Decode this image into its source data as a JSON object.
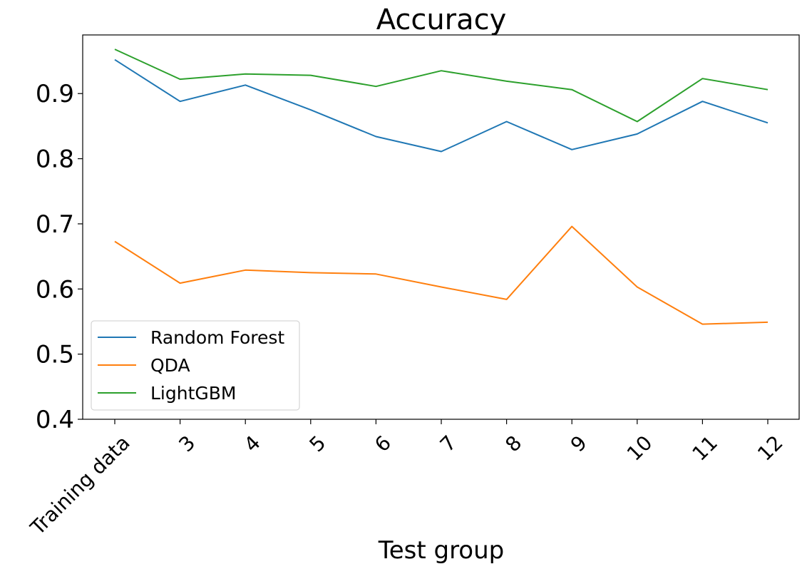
{
  "chart_data": {
    "type": "line",
    "title": "Accuracy",
    "xlabel": "Test group",
    "ylabel": "",
    "categories": [
      "Training data",
      "3",
      "4",
      "5",
      "6",
      "7",
      "8",
      "9",
      "10",
      "11",
      "12"
    ],
    "ylim": [
      0.4,
      0.99
    ],
    "yticks": [
      0.4,
      0.5,
      0.6,
      0.7,
      0.8,
      0.9
    ],
    "ytick_labels": [
      "0.4",
      "0.5",
      "0.6",
      "0.7",
      "0.8",
      "0.9"
    ],
    "grid": false,
    "legend_position": "lower-left",
    "series": [
      {
        "name": "Random Forest",
        "color": "#1f77b4",
        "values": [
          0.952,
          0.888,
          0.913,
          0.875,
          0.834,
          0.811,
          0.857,
          0.814,
          0.838,
          0.888,
          0.855
        ]
      },
      {
        "name": "QDA",
        "color": "#ff7f0e",
        "values": [
          0.673,
          0.609,
          0.629,
          0.625,
          0.623,
          0.603,
          0.584,
          0.696,
          0.603,
          0.546,
          0.549
        ]
      },
      {
        "name": "LightGBM",
        "color": "#2ca02c",
        "values": [
          0.968,
          0.922,
          0.93,
          0.928,
          0.911,
          0.935,
          0.919,
          0.906,
          0.857,
          0.923,
          0.906
        ]
      }
    ]
  }
}
